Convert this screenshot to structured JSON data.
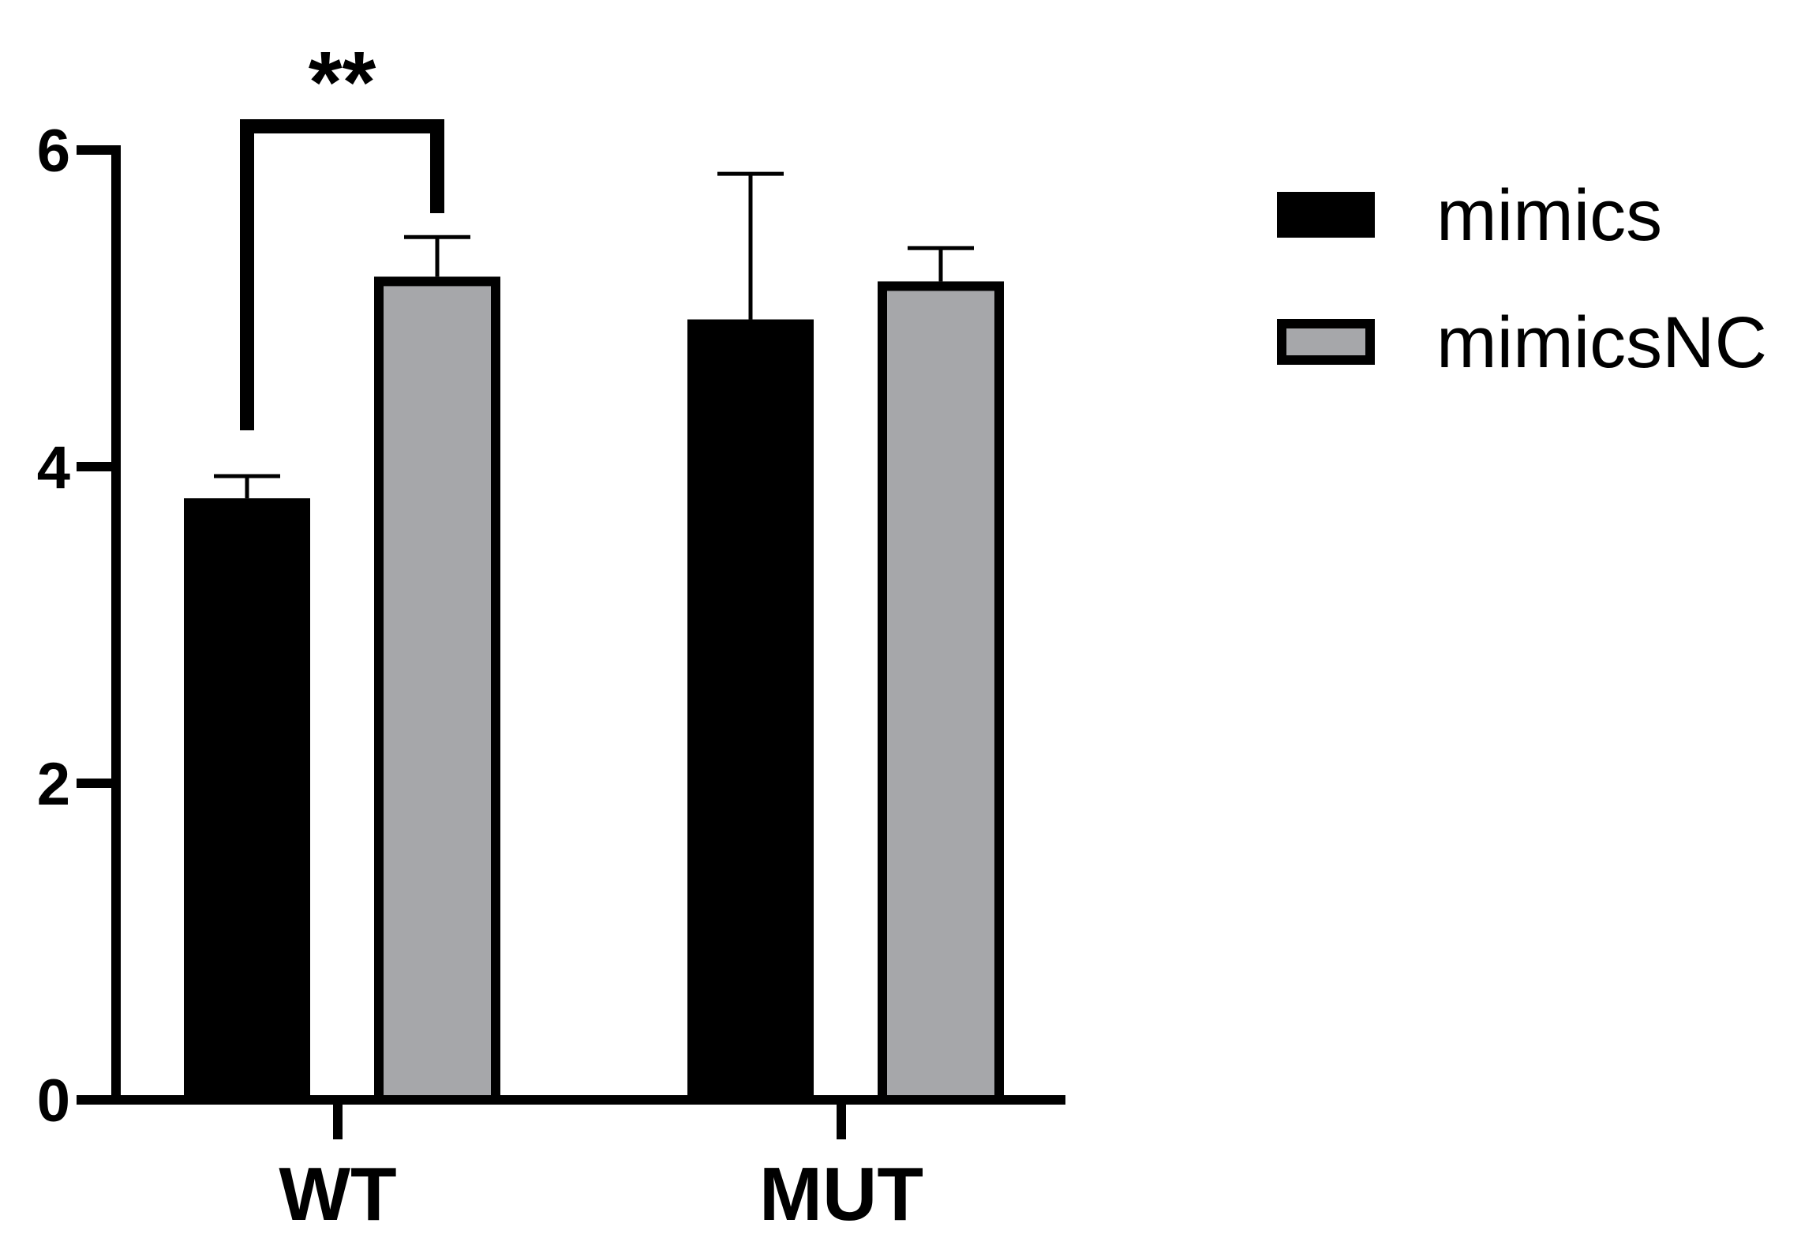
{
  "chart_data": {
    "type": "bar",
    "categories": [
      "WT",
      "MUT"
    ],
    "series": [
      {
        "name": "mimics",
        "values": [
          3.8,
          4.93
        ],
        "errors": [
          0.14,
          0.92
        ],
        "color": "#000000"
      },
      {
        "name": "mimicsNC",
        "values": [
          5.2,
          5.17
        ],
        "errors": [
          0.25,
          0.21
        ],
        "color": "#a6a7aa"
      }
    ],
    "ylim": [
      0,
      6
    ],
    "yticks": [
      0,
      2,
      4,
      6
    ],
    "ytick_labels": [
      "0",
      "2",
      "4",
      "6"
    ],
    "title": "",
    "xlabel": "",
    "ylabel": "",
    "legend_position": "top-right",
    "grid": false,
    "annotations": [
      {
        "text": "**",
        "category": "WT",
        "from_series": 0,
        "to_series": 1
      }
    ]
  }
}
